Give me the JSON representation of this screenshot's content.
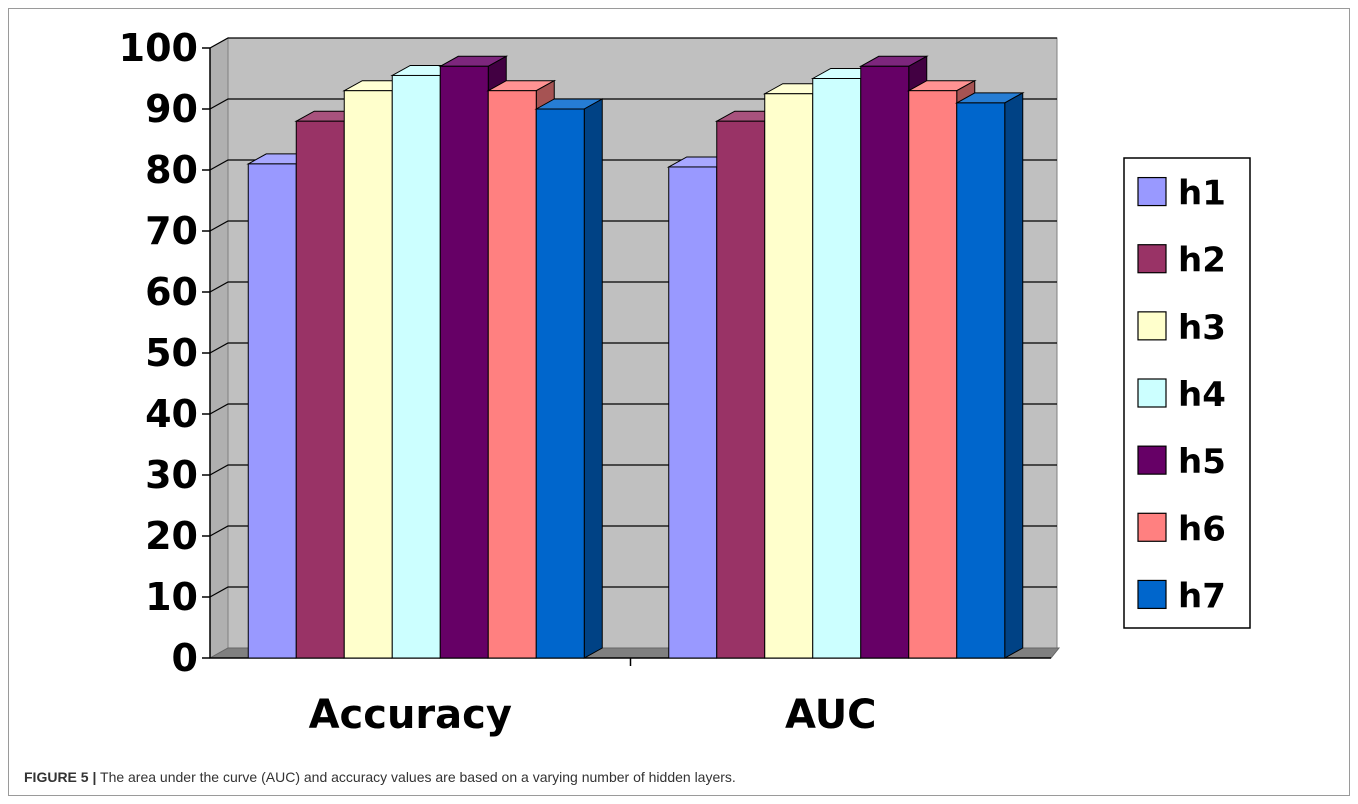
{
  "chart_data": {
    "type": "bar",
    "style": "3d-clustered-column",
    "categories": [
      "Accuracy",
      "AUC"
    ],
    "series": [
      {
        "name": "h1",
        "values": [
          81,
          80.5
        ],
        "color": "#9999FF"
      },
      {
        "name": "h2",
        "values": [
          88,
          88
        ],
        "color": "#993366"
      },
      {
        "name": "h3",
        "values": [
          93,
          92.5
        ],
        "color": "#FFFFCC"
      },
      {
        "name": "h4",
        "values": [
          95.5,
          95
        ],
        "color": "#CCFFFF"
      },
      {
        "name": "h5",
        "values": [
          97,
          97
        ],
        "color": "#660066"
      },
      {
        "name": "h6",
        "values": [
          93,
          93
        ],
        "color": "#FF8080"
      },
      {
        "name": "h7",
        "values": [
          90,
          91
        ],
        "color": "#0066CC"
      }
    ],
    "yticks": [
      "0",
      "10",
      "20",
      "30",
      "40",
      "50",
      "60",
      "70",
      "80",
      "90",
      "100"
    ],
    "ylim": [
      0,
      100
    ],
    "grid": true,
    "legend": "right",
    "wall_color": "#C0C0C0"
  },
  "caption": {
    "lead": "FIGURE 5 |",
    "text": " The area under the curve (AUC) and accuracy values are based on a varying number of hidden layers."
  }
}
